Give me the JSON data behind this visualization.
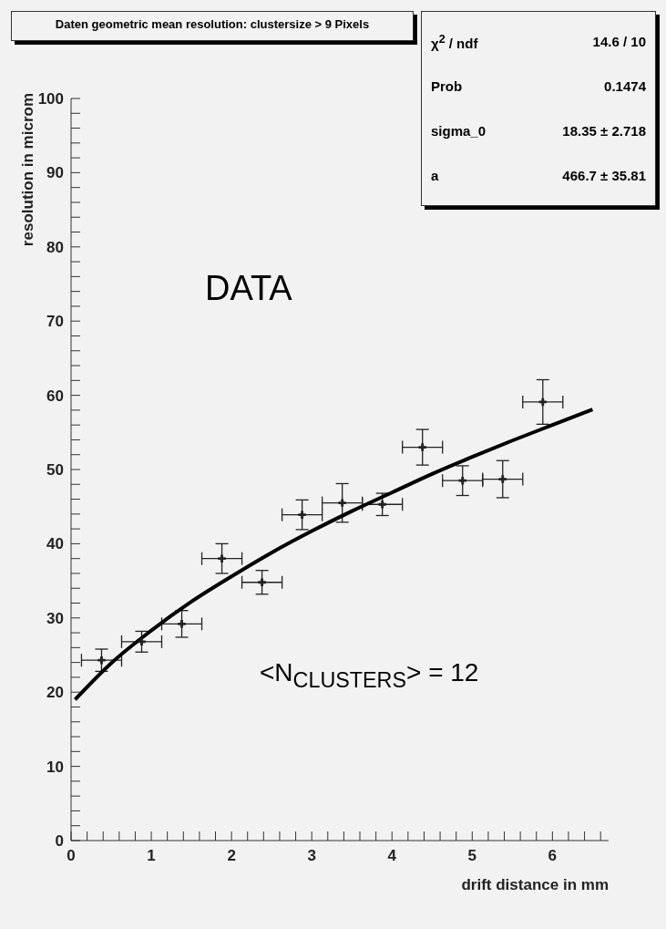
{
  "chart_data": {
    "type": "scatter",
    "title": "Daten geometric mean resolution: clustersize > 9 Pixels",
    "xlabel": "drift distance in mm",
    "ylabel": "resolution in microm",
    "x": [
      0.38,
      0.88,
      1.38,
      1.88,
      2.38,
      2.88,
      3.38,
      3.88,
      4.38,
      4.88,
      5.38,
      5.88
    ],
    "series": [
      {
        "type": "scatter",
        "marker": "cross",
        "color": "#222222",
        "values": [
          24.3,
          26.8,
          29.2,
          38.0,
          34.8,
          43.9,
          45.5,
          45.3,
          53.0,
          48.5,
          48.7,
          59.1
        ],
        "errors": [
          1.5,
          1.4,
          1.8,
          2.0,
          1.6,
          2.0,
          2.6,
          1.5,
          2.4,
          2.0,
          2.5,
          3.0
        ],
        "xerrors": [
          0.25,
          0.25,
          0.25,
          0.25,
          0.25,
          0.25,
          0.25,
          0.25,
          0.25,
          0.25,
          0.25,
          0.25
        ]
      },
      {
        "type": "line",
        "marker": "none",
        "color": "#000000",
        "x": [
          0.05,
          0.5,
          1,
          1.5,
          2,
          2.5,
          3,
          3.5,
          4,
          4.5,
          5,
          5.5,
          6,
          6.5
        ],
        "values": [
          19.0,
          23.9,
          28.3,
          32.2,
          35.6,
          38.8,
          41.7,
          44.4,
          46.9,
          49.4,
          51.7,
          53.9,
          56.0,
          58.1
        ]
      }
    ],
    "xlim": [
      0,
      6.7
    ],
    "xticks": [
      0,
      {
        "value": 0.2,
        "label": null
      },
      {
        "value": 0.4,
        "label": null
      },
      {
        "value": 0.6,
        "label": null
      },
      {
        "value": 0.8,
        "label": null
      },
      1,
      {
        "value": 1.2,
        "label": null
      },
      {
        "value": 1.4,
        "label": null
      },
      {
        "value": 1.6,
        "label": null
      },
      {
        "value": 1.8,
        "label": null
      },
      2,
      {
        "value": 2.2,
        "label": null
      },
      {
        "value": 2.4,
        "label": null
      },
      {
        "value": 2.6,
        "label": null
      },
      {
        "value": 2.8,
        "label": null
      },
      3,
      {
        "value": 3.2,
        "label": null
      },
      {
        "value": 3.4,
        "label": null
      },
      {
        "value": 3.6,
        "label": null
      },
      {
        "value": 3.8,
        "label": null
      },
      4,
      {
        "value": 4.2,
        "label": null
      },
      {
        "value": 4.4,
        "label": null
      },
      {
        "value": 4.6,
        "label": null
      },
      {
        "value": 4.8,
        "label": null
      },
      5,
      {
        "value": 5.2,
        "label": null
      },
      {
        "value": 5.4,
        "label": null
      },
      {
        "value": 5.6,
        "label": null
      },
      {
        "value": 5.8,
        "label": null
      },
      6,
      {
        "value": 6.2,
        "label": null
      },
      {
        "value": 6.4,
        "label": null
      },
      {
        "value": 6.6,
        "label": null
      }
    ],
    "ylim": [
      0,
      100
    ],
    "yticks": [
      0,
      {
        "value": 2,
        "label": null
      },
      {
        "value": 4,
        "label": null
      },
      {
        "value": 6,
        "label": null
      },
      {
        "value": 8,
        "label": null
      },
      10,
      {
        "value": 12,
        "label": null
      },
      {
        "value": 14,
        "label": null
      },
      {
        "value": 16,
        "label": null
      },
      {
        "value": 18,
        "label": null
      },
      20,
      {
        "value": 22,
        "label": null
      },
      {
        "value": 24,
        "label": null
      },
      {
        "value": 26,
        "label": null
      },
      {
        "value": 28,
        "label": null
      },
      30,
      {
        "value": 32,
        "label": null
      },
      {
        "value": 34,
        "label": null
      },
      {
        "value": 36,
        "label": null
      },
      {
        "value": 38,
        "label": null
      },
      40,
      {
        "value": 42,
        "label": null
      },
      {
        "value": 44,
        "label": null
      },
      {
        "value": 46,
        "label": null
      },
      {
        "value": 48,
        "label": null
      },
      50,
      {
        "value": 52,
        "label": null
      },
      {
        "value": 54,
        "label": null
      },
      {
        "value": 56,
        "label": null
      },
      {
        "value": 58,
        "label": null
      },
      60,
      {
        "value": 62,
        "label": null
      },
      {
        "value": 64,
        "label": null
      },
      {
        "value": 66,
        "label": null
      },
      {
        "value": 68,
        "label": null
      },
      70,
      {
        "value": 72,
        "label": null
      },
      {
        "value": 74,
        "label": null
      },
      {
        "value": 76,
        "label": null
      },
      {
        "value": 78,
        "label": null
      },
      80,
      {
        "value": 82,
        "label": null
      },
      {
        "value": 84,
        "label": null
      },
      {
        "value": 86,
        "label": null
      },
      {
        "value": 88,
        "label": null
      },
      90,
      {
        "value": 92,
        "label": null
      },
      {
        "value": 94,
        "label": null
      },
      {
        "value": 96,
        "label": null
      },
      {
        "value": 98,
        "label": null
      },
      100
    ],
    "grid": false,
    "legend": false,
    "line_style": "solid",
    "annotations": [
      "DATA",
      "<N$_{CLUSTERS}$> = 12",
      "χ$^{2}$ / ndf",
      "14.6 / 10",
      "Prob",
      "0.1474",
      "sigma_0",
      "18.35 ± 2.718",
      "a",
      "466.7 ± 35.81"
    ]
  }
}
